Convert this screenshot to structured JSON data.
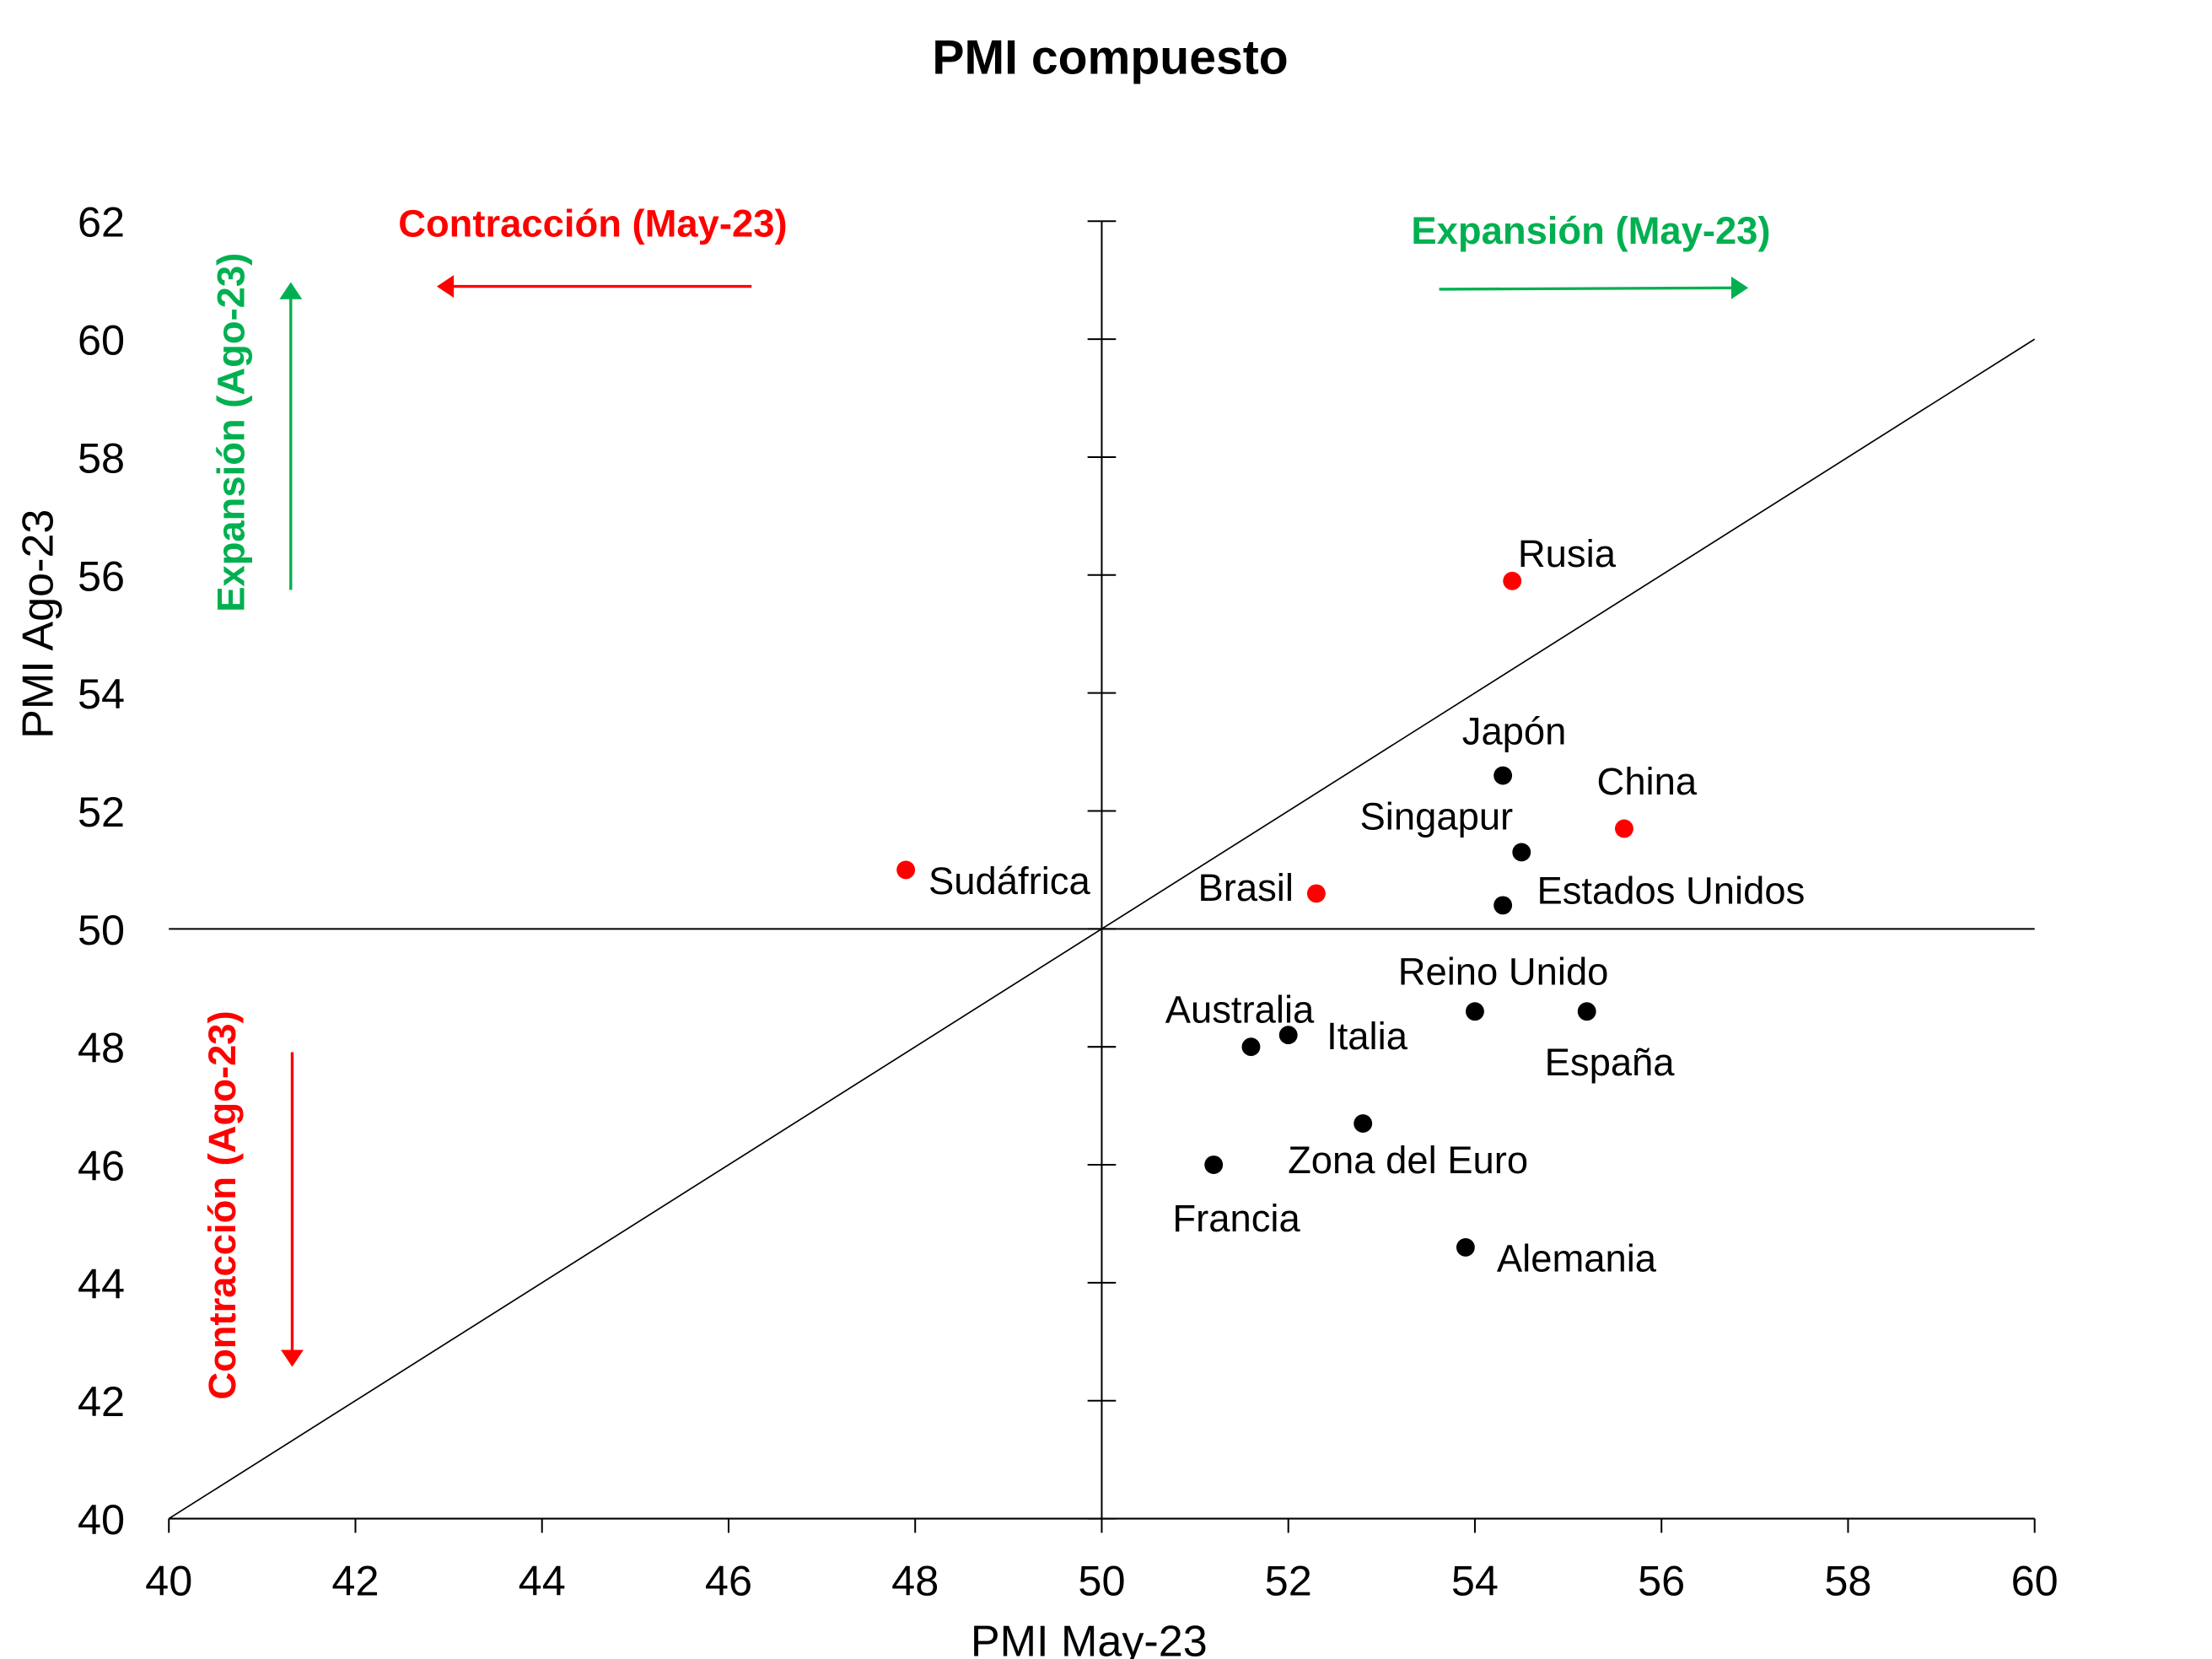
{
  "chart_data": {
    "type": "scatter",
    "title": "PMI compuesto",
    "xlabel": "PMI May-23",
    "ylabel": "PMI Ago-23",
    "xlim": [
      40,
      60
    ],
    "ylim": [
      40,
      62
    ],
    "xticks": [
      40,
      42,
      44,
      46,
      48,
      50,
      52,
      54,
      56,
      58,
      60
    ],
    "yticks": [
      40,
      42,
      44,
      46,
      48,
      50,
      52,
      54,
      56,
      58,
      60,
      62
    ],
    "grid": false,
    "reference_lines": {
      "vertical_x": 50,
      "horizontal_y": 50,
      "diagonal": "y = x"
    },
    "colors": {
      "highlight": "#ff0000",
      "default": "#000000",
      "expansion": "#00b050",
      "contraction": "#ff0000"
    },
    "points": [
      {
        "label": "Rusia",
        "x": 54.4,
        "y": 55.9,
        "color": "#ff0000"
      },
      {
        "label": "Japón",
        "x": 54.3,
        "y": 52.6,
        "color": "#000000"
      },
      {
        "label": "China",
        "x": 55.6,
        "y": 51.7,
        "color": "#ff0000"
      },
      {
        "label": "Singapur",
        "x": 54.5,
        "y": 51.3,
        "color": "#000000"
      },
      {
        "label": "Estados Unidos",
        "x": 54.3,
        "y": 50.4,
        "color": "#000000"
      },
      {
        "label": "Brasil",
        "x": 52.3,
        "y": 50.6,
        "color": "#ff0000"
      },
      {
        "label": "Sudáfrica",
        "x": 47.9,
        "y": 51.0,
        "color": "#ff0000"
      },
      {
        "label": "Reino Unido",
        "x": 54.0,
        "y": 48.6,
        "color": "#000000"
      },
      {
        "label": "España",
        "x": 55.2,
        "y": 48.6,
        "color": "#000000"
      },
      {
        "label": "Australia",
        "x": 51.6,
        "y": 48.0,
        "color": "#000000"
      },
      {
        "label": "Italia",
        "x": 52.0,
        "y": 48.2,
        "color": "#000000"
      },
      {
        "label": "Zona del Euro",
        "x": 52.8,
        "y": 46.7,
        "color": "#000000"
      },
      {
        "label": "Francia",
        "x": 51.2,
        "y": 46.0,
        "color": "#000000"
      },
      {
        "label": "Alemania",
        "x": 53.9,
        "y": 44.6,
        "color": "#000000"
      }
    ],
    "annotations": {
      "contraction_may": "Contracción (May-23)",
      "expansion_may": "Expansión (May-23)",
      "expansion_ago": "Expansión (Ago-23)",
      "contraction_ago": "Contracción (Ago-23)"
    }
  }
}
